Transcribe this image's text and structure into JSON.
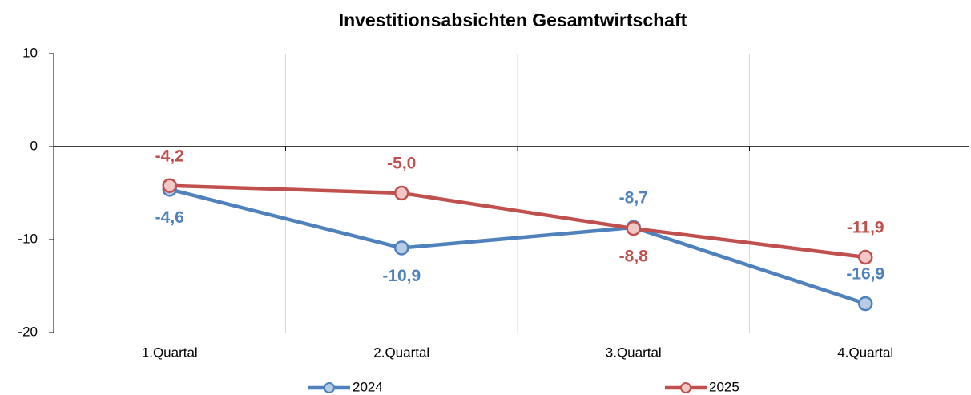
{
  "chart_data": {
    "type": "line",
    "title": "Investitionsabsichten Gesamtwirtschaft",
    "categories": [
      "1.Quartal",
      "2.Quartal",
      "3.Quartal",
      "4.Quartal"
    ],
    "series": [
      {
        "name": "2024",
        "color": "#4f81bd",
        "values": [
          -4.6,
          -10.9,
          -8.7,
          -16.9
        ],
        "value_labels": [
          "-4,6",
          "-10,9",
          "-8,7",
          "-16,9"
        ]
      },
      {
        "name": "2025",
        "color": "#c0504d",
        "values": [
          -4.2,
          -5.0,
          -8.8,
          -11.9
        ],
        "value_labels": [
          "-4,2",
          "-5,0",
          "-8,8",
          "-11,9"
        ]
      }
    ],
    "ylim": [
      -20,
      10
    ],
    "yticks": [
      -20,
      -10,
      0,
      10
    ],
    "grid": true,
    "legend": "bottom"
  }
}
